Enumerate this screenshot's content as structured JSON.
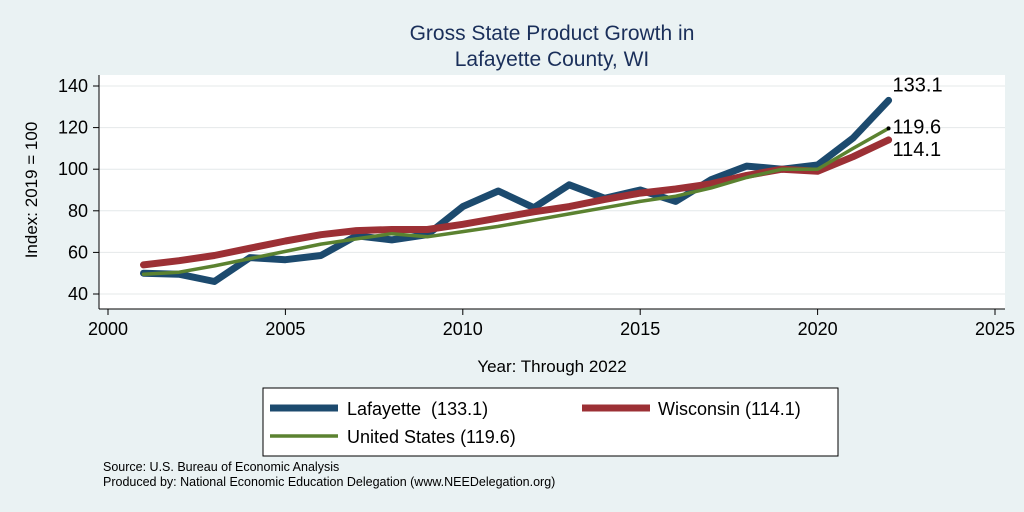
{
  "chart_data": {
    "type": "line",
    "title": [
      "Gross State Product Growth in",
      "Lafayette County, WI"
    ],
    "xlabel": "Year: Through 2022",
    "ylabel": "Index: 2019 = 100",
    "xlim": [
      2000,
      2025
    ],
    "ylim": [
      40,
      140
    ],
    "xticks": [
      2000,
      2005,
      2010,
      2015,
      2020,
      2025
    ],
    "yticks": [
      40,
      60,
      80,
      100,
      120,
      140
    ],
    "grid": true,
    "legend_position": "bottom",
    "x": [
      2001,
      2002,
      2003,
      2004,
      2005,
      2006,
      2007,
      2008,
      2009,
      2010,
      2011,
      2012,
      2013,
      2014,
      2015,
      2016,
      2017,
      2018,
      2019,
      2020,
      2021,
      2022
    ],
    "series": [
      {
        "name": "Lafayette  (133.1)",
        "key": "lafayette",
        "color": "#1c4a6e",
        "end_label": "133.1",
        "values": [
          50.0,
          49.5,
          46.0,
          57.5,
          56.5,
          58.5,
          68.0,
          66.0,
          68.5,
          82.0,
          89.5,
          81.5,
          92.5,
          86.0,
          90.0,
          84.5,
          95.0,
          101.5,
          100.0,
          102.0,
          115.0,
          133.1
        ]
      },
      {
        "name": "Wisconsin (114.1)",
        "key": "wisconsin",
        "color": "#9c3035",
        "end_label": "114.1",
        "values": [
          54.0,
          56.0,
          58.5,
          62.0,
          65.5,
          68.5,
          70.5,
          71.0,
          71.0,
          73.5,
          76.5,
          79.5,
          82.0,
          85.5,
          88.5,
          90.5,
          93.0,
          97.0,
          100.0,
          99.0,
          106.0,
          114.1
        ]
      },
      {
        "name": "United States (119.6)",
        "key": "us",
        "color": "#5b8230",
        "end_label": "119.6",
        "values": [
          49.5,
          50.5,
          53.5,
          57.0,
          60.5,
          64.0,
          66.5,
          69.0,
          67.5,
          70.0,
          72.5,
          75.5,
          78.5,
          81.5,
          84.5,
          87.0,
          91.0,
          96.0,
          100.0,
          100.0,
          110.0,
          119.6
        ]
      }
    ]
  },
  "notes": {
    "source": "Source: U.S. Bureau of Economic Analysis",
    "produced_by": "Produced by: National Economic Education Delegation (www.NEEDelegation.org)"
  }
}
